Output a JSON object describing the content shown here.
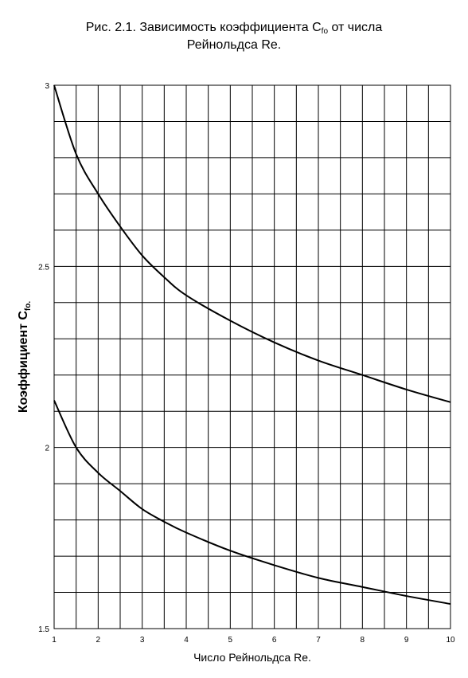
{
  "title": {
    "line1_prefix": "Рис. 2.1. Зависимость коэффициента C",
    "line1_sub": "fo",
    "line1_suffix": " от числа",
    "line2": "Рейнольдса Re."
  },
  "chart_data": {
    "type": "line",
    "title": "Рис. 2.1. Зависимость коэффициента Cfo от числа Рейнольдса Re.",
    "xlabel": "Число Рейнольдса Re.",
    "ylabel_main": "Коэффициент C",
    "ylabel_sub": "fo.",
    "xlim": [
      1,
      10
    ],
    "ylim": [
      1.5,
      3
    ],
    "xticks": [
      "1",
      "2",
      "3",
      "4",
      "5",
      "6",
      "7",
      "8",
      "9",
      "10"
    ],
    "yticks": [
      "1.5",
      "2",
      "2.5",
      "3"
    ],
    "grid": true,
    "legend": "none",
    "series": [
      {
        "color": "#000000",
        "x": [
          1,
          1.5,
          2,
          2.5,
          3,
          3.5,
          4,
          5,
          6,
          7,
          8,
          9,
          10
        ],
        "y": [
          3.0,
          2.81,
          2.7,
          2.61,
          2.53,
          2.47,
          2.42,
          2.35,
          2.29,
          2.24,
          2.2,
          2.16,
          2.125
        ]
      },
      {
        "color": "#000000",
        "x": [
          1,
          1.5,
          2,
          2.5,
          3,
          3.5,
          4,
          5,
          6,
          7,
          8,
          9,
          10
        ],
        "y": [
          2.13,
          2.0,
          1.93,
          1.88,
          1.83,
          1.795,
          1.765,
          1.715,
          1.675,
          1.64,
          1.615,
          1.59,
          1.568
        ]
      }
    ]
  }
}
